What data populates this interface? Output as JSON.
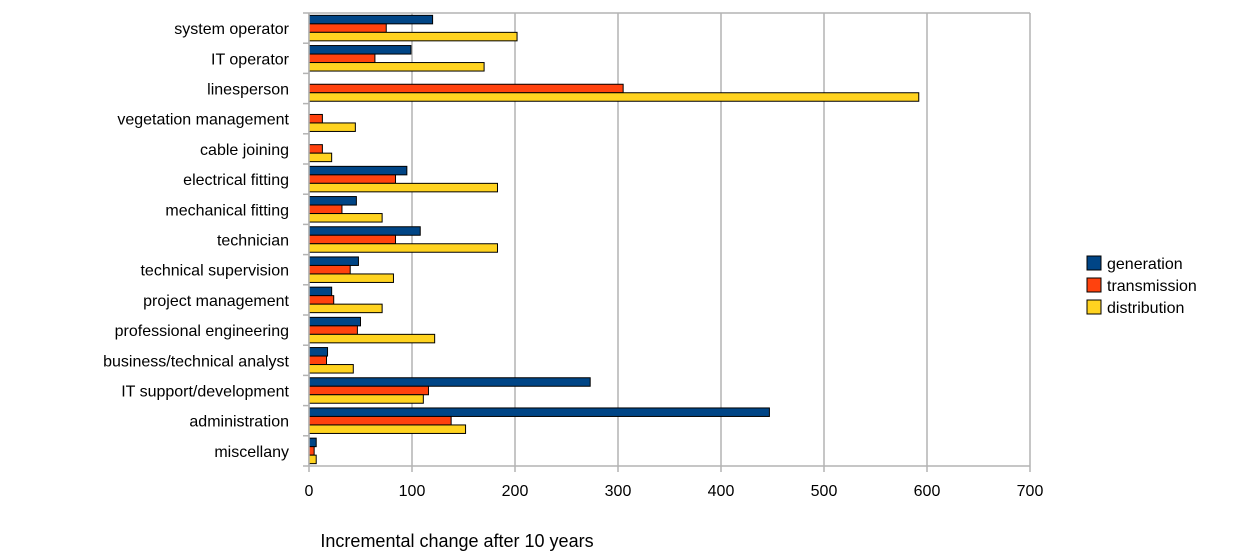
{
  "chart_data": {
    "type": "bar",
    "orientation": "horizontal",
    "title": "",
    "xlabel": "Incremental change after 10 years",
    "ylabel": "",
    "xlim": [
      0,
      700
    ],
    "x_ticks": [
      0,
      100,
      200,
      300,
      400,
      500,
      600,
      700
    ],
    "grid": "vertical",
    "legend_position": "right",
    "categories": [
      "system operator",
      "IT operator",
      "linesperson",
      "vegetation management",
      "cable joining",
      "electrical fitting",
      "mechanical fitting",
      "technician",
      "technical supervision",
      "project management",
      "professional engineering",
      "business/technical analyst",
      "IT support/development",
      "administration",
      "miscellany"
    ],
    "series": [
      {
        "name": "generation",
        "color": "#004586",
        "values": [
          120,
          99,
          0,
          0,
          0,
          95,
          46,
          108,
          48,
          22,
          50,
          18,
          273,
          447,
          7
        ]
      },
      {
        "name": "transmission",
        "color": "#ff420e",
        "values": [
          75,
          64,
          305,
          13,
          13,
          84,
          32,
          84,
          40,
          24,
          47,
          17,
          116,
          138,
          5
        ]
      },
      {
        "name": "distribution",
        "color": "#ffd320",
        "values": [
          202,
          170,
          592,
          45,
          22,
          183,
          71,
          183,
          82,
          71,
          122,
          43,
          111,
          152,
          7
        ]
      }
    ]
  }
}
